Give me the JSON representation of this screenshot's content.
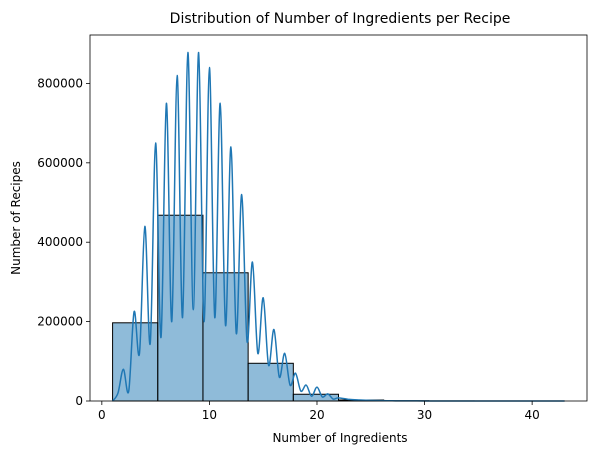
{
  "chart_data": {
    "type": "bar",
    "title": "Distribution of Number of Ingredients per Recipe",
    "xlabel": "Number of Ingredients",
    "ylabel": "Number of Recipes",
    "xlim": [
      -1.1,
      45.1
    ],
    "ylim": [
      0,
      922000
    ],
    "xticks": [
      0,
      10,
      20,
      30,
      40
    ],
    "yticks": [
      0,
      200000,
      400000,
      600000,
      800000
    ],
    "grid": false,
    "legend": "none",
    "color": "#1f77b4",
    "histogram": {
      "bin_edges": [
        1.0,
        5.2,
        9.4,
        13.6,
        17.8,
        22.0,
        26.2,
        30.4,
        34.6,
        38.8,
        43.0
      ],
      "counts": [
        197000,
        468000,
        323000,
        95000,
        17000,
        2500,
        600,
        150,
        50,
        20
      ]
    },
    "kde": {
      "x": [
        1,
        1.5,
        2,
        2.5,
        3,
        3.5,
        4,
        4.5,
        5,
        5.5,
        6,
        6.5,
        7,
        7.5,
        8,
        8.5,
        9,
        9.5,
        10,
        10.5,
        11,
        11.5,
        12,
        12.5,
        13,
        13.5,
        14,
        14.5,
        15,
        15.5,
        16,
        16.5,
        17,
        17.5,
        18,
        18.5,
        19,
        19.5,
        20,
        20.5,
        21,
        21.5,
        22,
        23,
        24,
        25,
        26,
        27,
        28,
        30,
        32,
        35,
        38,
        40,
        43
      ],
      "y": [
        0,
        20000,
        80000,
        25000,
        225000,
        120000,
        440000,
        145000,
        650000,
        160000,
        750000,
        200000,
        820000,
        210000,
        878000,
        230000,
        878000,
        200000,
        840000,
        210000,
        750000,
        190000,
        640000,
        170000,
        520000,
        150000,
        350000,
        120000,
        260000,
        90000,
        180000,
        60000,
        120000,
        40000,
        70000,
        25000,
        40000,
        12000,
        35000,
        10000,
        18000,
        5000,
        8000,
        4000,
        2500,
        1500,
        1000,
        500,
        300,
        150,
        80,
        40,
        20,
        10,
        0
      ]
    }
  }
}
